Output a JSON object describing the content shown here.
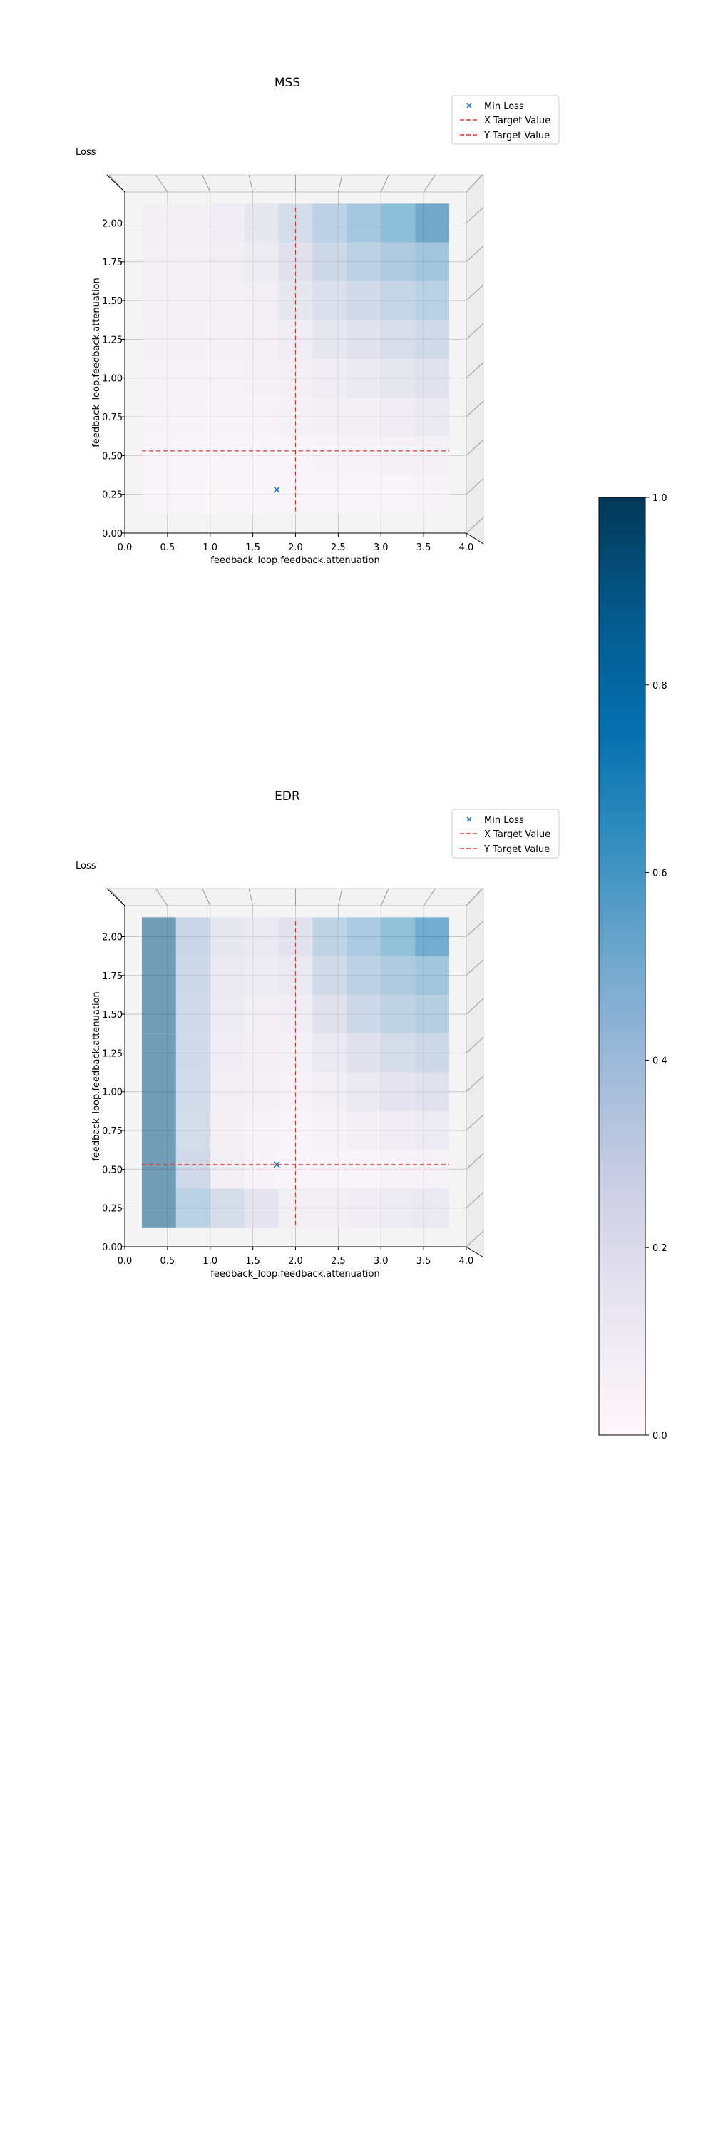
{
  "figure": {
    "colorbar": {
      "ticks": [
        0.0,
        0.2,
        0.4,
        0.6,
        0.8,
        1.0
      ],
      "tick_labels": [
        "0.0",
        "0.2",
        "0.4",
        "0.6",
        "0.8",
        "1.0"
      ],
      "range": [
        0,
        1
      ],
      "colormap": "PuBu"
    }
  },
  "chart_data": [
    {
      "type": "heatmap",
      "title": "MSS",
      "zlabel": "Loss",
      "xlabel": "feedback_loop.feedback.attenuation",
      "ylabel": "feedback_loop.feedback.attenuation",
      "xlim": [
        0,
        4
      ],
      "ylim": [
        0,
        2.2
      ],
      "xticks": [
        "0.0",
        "0.5",
        "1.0",
        "1.5",
        "2.0",
        "2.5",
        "3.0",
        "3.5",
        "4.0"
      ],
      "yticks": [
        "0.00",
        "0.25",
        "0.50",
        "0.75",
        "1.00",
        "1.25",
        "1.50",
        "1.75",
        "2.00"
      ],
      "x_centers": [
        0.4,
        0.8,
        1.2,
        1.6,
        2.0,
        2.4,
        2.8,
        3.2,
        3.6
      ],
      "y_centers": [
        0.25,
        0.5,
        0.75,
        1.0,
        1.25,
        1.5,
        1.75,
        2.0
      ],
      "values": [
        [
          0.03,
          0.02,
          0.02,
          0.02,
          0.02,
          0.03,
          0.03,
          0.04,
          0.05
        ],
        [
          0.04,
          0.03,
          0.03,
          0.03,
          0.04,
          0.05,
          0.06,
          0.07,
          0.09
        ],
        [
          0.05,
          0.05,
          0.05,
          0.05,
          0.07,
          0.1,
          0.12,
          0.14,
          0.17
        ],
        [
          0.06,
          0.06,
          0.06,
          0.07,
          0.1,
          0.14,
          0.18,
          0.21,
          0.25
        ],
        [
          0.07,
          0.07,
          0.07,
          0.09,
          0.14,
          0.2,
          0.25,
          0.3,
          0.35
        ],
        [
          0.08,
          0.08,
          0.09,
          0.12,
          0.2,
          0.28,
          0.34,
          0.4,
          0.45
        ],
        [
          0.09,
          0.09,
          0.11,
          0.16,
          0.26,
          0.36,
          0.44,
          0.5,
          0.55
        ],
        [
          0.1,
          0.1,
          0.13,
          0.2,
          0.32,
          0.44,
          0.54,
          0.62,
          0.8
        ]
      ],
      "min_loss": {
        "x": 1.78,
        "y": 0.28
      },
      "x_target": 2.0,
      "y_target": 0.53,
      "legend": [
        "Min Loss",
        "X Target Value",
        "Y Target Value"
      ],
      "legend_position": "top-right",
      "grid": true
    },
    {
      "type": "heatmap",
      "title": "EDR",
      "zlabel": "Loss",
      "xlabel": "feedback_loop.feedback.attenuation",
      "ylabel": "feedback_loop.feedback.attenuation",
      "xlim": [
        0,
        4
      ],
      "ylim": [
        0,
        2.2
      ],
      "xticks": [
        "0.0",
        "0.5",
        "1.0",
        "1.5",
        "2.0",
        "2.5",
        "3.0",
        "3.5",
        "4.0"
      ],
      "yticks": [
        "0.00",
        "0.25",
        "0.50",
        "0.75",
        "1.00",
        "1.25",
        "1.50",
        "1.75",
        "2.00"
      ],
      "x_centers": [
        0.4,
        0.8,
        1.2,
        1.6,
        2.0,
        2.4,
        2.8,
        3.2,
        3.6
      ],
      "y_centers": [
        0.25,
        0.5,
        0.75,
        1.0,
        1.25,
        1.5,
        1.75,
        2.0
      ],
      "values": [
        [
          0.9,
          0.45,
          0.32,
          0.22,
          0.12,
          0.12,
          0.14,
          0.16,
          0.18
        ],
        [
          0.9,
          0.35,
          0.12,
          0.05,
          0.02,
          0.03,
          0.04,
          0.05,
          0.06
        ],
        [
          0.9,
          0.32,
          0.1,
          0.05,
          0.03,
          0.06,
          0.1,
          0.13,
          0.16
        ],
        [
          0.9,
          0.33,
          0.12,
          0.08,
          0.06,
          0.12,
          0.18,
          0.22,
          0.25
        ],
        [
          0.9,
          0.34,
          0.14,
          0.1,
          0.09,
          0.18,
          0.26,
          0.32,
          0.36
        ],
        [
          0.9,
          0.35,
          0.16,
          0.12,
          0.13,
          0.26,
          0.36,
          0.42,
          0.46
        ],
        [
          0.9,
          0.36,
          0.18,
          0.15,
          0.18,
          0.34,
          0.44,
          0.5,
          0.55
        ],
        [
          0.9,
          0.38,
          0.2,
          0.18,
          0.24,
          0.42,
          0.52,
          0.6,
          0.75
        ]
      ],
      "min_loss": {
        "x": 1.78,
        "y": 0.53
      },
      "x_target": 2.0,
      "y_target": 0.53,
      "legend": [
        "Min Loss",
        "X Target Value",
        "Y Target Value"
      ],
      "legend_position": "top-right",
      "grid": true
    }
  ]
}
